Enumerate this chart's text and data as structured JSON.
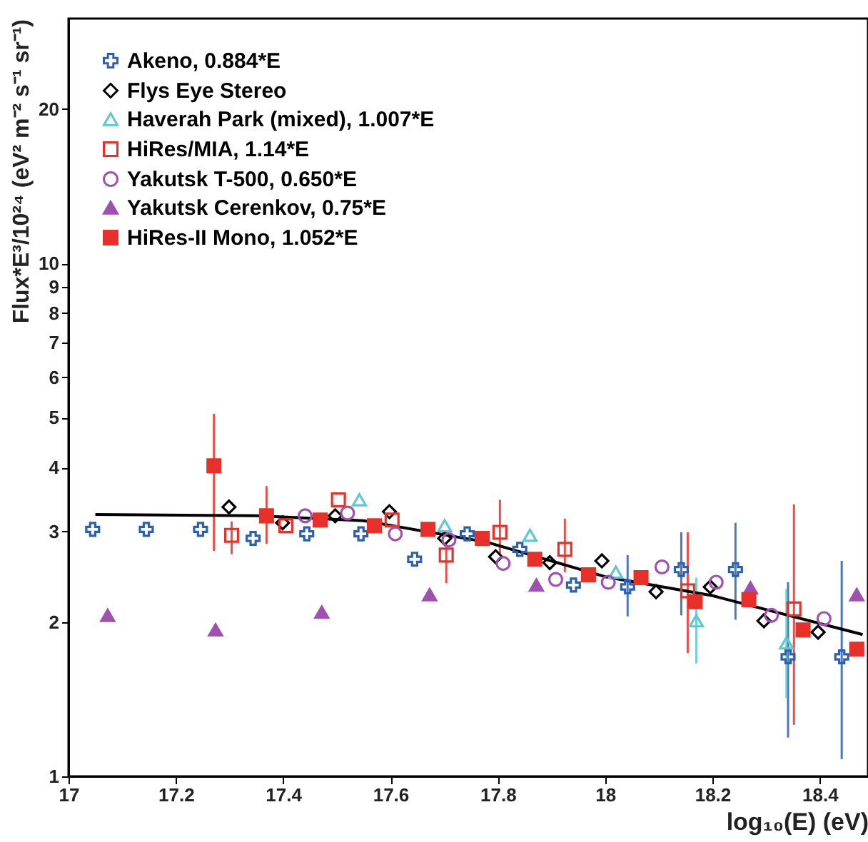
{
  "chart_data": {
    "type": "scatter",
    "xlabel": "log₁₀(E) (eV)",
    "ylabel": "Flux*E³/10²⁴ (eV² m⁻² s⁻¹ sr⁻¹)",
    "log": "y",
    "grid": false,
    "legend": "top left",
    "xlim": [
      17,
      18.49
    ],
    "ylim": [
      1,
      30
    ],
    "xticks": [
      17,
      17.2,
      17.4,
      17.6,
      17.8,
      18,
      18.2,
      18.4
    ],
    "yticks": [
      1,
      2,
      3,
      4,
      5,
      6,
      7,
      8,
      9,
      10,
      20
    ],
    "series": [
      {
        "name": "Akeno, 0.884*E",
        "color": "#2b5fb0",
        "marker": "cross",
        "x": [
          17.045,
          17.145,
          17.246,
          17.344,
          17.444,
          17.545,
          17.645,
          17.743,
          17.841,
          17.941,
          18.042,
          18.142,
          18.243,
          18.341,
          18.441
        ],
        "values": [
          3.03,
          3.03,
          3.03,
          2.91,
          2.97,
          2.97,
          2.65,
          2.97,
          2.77,
          2.36,
          2.34,
          2.53,
          2.53,
          1.71,
          1.71
        ],
        "errors": [
          null,
          null,
          null,
          null,
          null,
          null,
          null,
          null,
          null,
          null,
          [
            2.05,
            2.7
          ],
          [
            2.06,
            2.99
          ],
          [
            2.02,
            3.12
          ],
          [
            1.19,
            2.39
          ],
          [
            1.08,
            2.63
          ]
        ]
      },
      {
        "name": "Flys Eye Stereo",
        "color": "#000000",
        "marker": "diamond",
        "x": [
          17.299,
          17.399,
          17.497,
          17.598,
          17.701,
          17.796,
          17.897,
          17.994,
          18.095,
          18.196,
          18.296,
          18.397
        ],
        "values": [
          3.35,
          3.12,
          3.22,
          3.28,
          2.91,
          2.68,
          2.61,
          2.63,
          2.29,
          2.34,
          2.01,
          1.91
        ]
      },
      {
        "name": "Haverah Park (mixed), 1.007*E",
        "color": "#5cc8d0",
        "marker": "triangle",
        "x": [
          17.542,
          17.701,
          17.86,
          18.02,
          18.17,
          18.338
        ],
        "values": [
          3.46,
          3.08,
          2.95,
          2.5,
          2.01,
          1.82
        ],
        "errors": [
          null,
          null,
          null,
          null,
          [
            1.66,
            2.44
          ],
          [
            1.42,
            2.32
          ]
        ]
      },
      {
        "name": "HiRes/MIA, 1.14*E",
        "color": "#e8302a",
        "marker": "square",
        "x": [
          17.304,
          17.405,
          17.503,
          17.603,
          17.704,
          17.804,
          17.925,
          18.154,
          18.352
        ],
        "values": [
          2.95,
          3.08,
          3.46,
          3.16,
          2.7,
          2.99,
          2.77,
          2.3,
          2.12
        ],
        "errors": [
          [
            2.71,
            3.14
          ],
          null,
          null,
          null,
          [
            2.38,
            2.81
          ],
          [
            2.72,
            3.46
          ],
          [
            2.5,
            3.18
          ],
          [
            1.74,
            2.99
          ],
          [
            1.26,
            3.39
          ]
        ]
      },
      {
        "name": "Yakutsk T-500, 0.650*E",
        "color": "#a050b0",
        "marker": "circle",
        "x": [
          17.441,
          17.52,
          17.609,
          17.709,
          17.81,
          17.908,
          18.006,
          18.106,
          18.207,
          18.31,
          18.408
        ],
        "values": [
          3.22,
          3.26,
          2.97,
          2.89,
          2.6,
          2.42,
          2.39,
          2.56,
          2.39,
          2.06,
          2.03
        ]
      },
      {
        "name": "Yakutsk Cerenkov, 0.75*E",
        "color": "#a050b0",
        "marker": "triangle",
        "x": [
          17.073,
          17.274,
          17.472,
          17.673,
          17.872,
          18.271,
          18.469
        ],
        "values": [
          2.06,
          1.93,
          2.09,
          2.26,
          2.36,
          2.33,
          2.26
        ]
      },
      {
        "name": "HiRes-II Mono, 1.052*E",
        "color": "#e8302a",
        "marker": "square",
        "x": [
          17.271,
          17.369,
          17.469,
          17.57,
          17.67,
          17.771,
          17.869,
          17.969,
          18.067,
          18.168,
          18.268,
          18.369,
          18.469
        ],
        "values": [
          4.03,
          3.22,
          3.16,
          3.08,
          3.03,
          2.91,
          2.65,
          2.47,
          2.44,
          2.19,
          2.21,
          1.93,
          1.77
        ],
        "errors": [
          [
            2.75,
            5.09
          ],
          [
            2.84,
            3.68
          ],
          null,
          null,
          null,
          null,
          null,
          null,
          null,
          null,
          null,
          null,
          null
        ]
      },
      {
        "type": "line",
        "color": "#000000",
        "x": [
          17.05,
          17.35,
          17.55,
          17.78,
          18.0,
          18.2,
          18.48
        ],
        "values": [
          3.24,
          3.22,
          3.15,
          2.86,
          2.45,
          2.25,
          1.89
        ]
      }
    ]
  }
}
